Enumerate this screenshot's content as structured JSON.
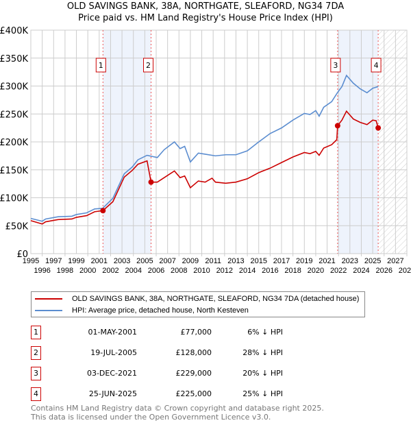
{
  "title_line1": "OLD SAVINGS BANK, 38A, NORTHGATE, SLEAFORD, NG34 7DA",
  "title_line2": "Price paid vs. HM Land Registry's House Price Index (HPI)",
  "chart_data": {
    "type": "line",
    "xlim": [
      1995,
      2028
    ],
    "ylim": [
      0,
      400000
    ],
    "yticks": [
      0,
      50000,
      100000,
      150000,
      200000,
      250000,
      300000,
      350000,
      400000
    ],
    "ytick_labels": [
      "£0",
      "£50K",
      "£100K",
      "£150K",
      "£200K",
      "£250K",
      "£300K",
      "£350K",
      "£400K"
    ],
    "xticks": [
      1995,
      1996,
      1997,
      1998,
      1999,
      2000,
      2001,
      2002,
      2003,
      2004,
      2005,
      2006,
      2007,
      2008,
      2009,
      2010,
      2011,
      2012,
      2013,
      2014,
      2015,
      2016,
      2017,
      2018,
      2019,
      2020,
      2021,
      2022,
      2023,
      2024,
      2025,
      2026,
      2027,
      2028
    ],
    "grid": true,
    "series": [
      {
        "name": "OLD SAVINGS BANK, 38A, NORTHGATE, SLEAFORD, NG34 7DA (detached house)",
        "color": "#cc0000",
        "x": [
          1995,
          1996,
          1996.3,
          1997.4,
          1998.6,
          1999,
          1999.9,
          2000.6,
          2001.33,
          2002.2,
          2003.2,
          2003.9,
          2004.4,
          2005.2,
          2005.55,
          2006.1,
          2006.7,
          2007.6,
          2008.1,
          2008.5,
          2009,
          2009.7,
          2010.3,
          2010.9,
          2011.2,
          2012.1,
          2013,
          2014,
          2015,
          2016,
          2017,
          2018,
          2019,
          2019.5,
          2020,
          2020.3,
          2020.7,
          2021.4,
          2021.85,
          2021.92,
          2022.3,
          2022.7,
          2023.3,
          2023.9,
          2024.5,
          2025,
          2025.3,
          2025.48
        ],
        "y": [
          59000,
          53000,
          57000,
          61000,
          62000,
          65000,
          68000,
          75000,
          77000,
          93000,
          137000,
          149000,
          160000,
          166000,
          128000,
          128000,
          136000,
          148000,
          136000,
          139000,
          118000,
          130000,
          128000,
          135000,
          128000,
          126000,
          128000,
          134000,
          145000,
          153000,
          163000,
          173000,
          181000,
          179000,
          183000,
          176000,
          189000,
          195000,
          204000,
          229000,
          239000,
          255000,
          241000,
          235000,
          231000,
          239000,
          238000,
          225000
        ]
      },
      {
        "name": "HPI: Average price, detached house, North Kesteven",
        "color": "#5b8dd0",
        "x": [
          1995,
          1996,
          1996.3,
          1997.4,
          1998.6,
          1999,
          1999.9,
          2000.6,
          2001.3,
          2002.2,
          2003.2,
          2003.9,
          2004.4,
          2005.2,
          2006.1,
          2006.7,
          2007.6,
          2008.1,
          2008.5,
          2009,
          2009.7,
          2010.3,
          2011.2,
          2012.1,
          2013,
          2014,
          2015,
          2016,
          2017,
          2018,
          2019,
          2019.5,
          2020,
          2020.3,
          2020.7,
          2021.4,
          2021.9,
          2022.3,
          2022.7,
          2023.3,
          2023.9,
          2024.5,
          2025,
          2025.48
        ],
        "y": [
          63000,
          58000,
          62000,
          66000,
          67000,
          70000,
          73000,
          80000,
          81000,
          99000,
          143000,
          155000,
          168000,
          176000,
          172000,
          186000,
          200000,
          188000,
          192000,
          164000,
          180000,
          178000,
          175000,
          177000,
          177000,
          184000,
          200000,
          215000,
          225000,
          239000,
          251000,
          249000,
          256000,
          246000,
          262000,
          272000,
          288000,
          299000,
          319000,
          305000,
          295000,
          288000,
          296000,
          299000
        ]
      }
    ],
    "sales": [
      {
        "label": "1",
        "x": 2001.33,
        "date": "01-MAY-2001",
        "price": 77000,
        "price_label": "£77,000",
        "hpi": "6% ↓ HPI"
      },
      {
        "label": "2",
        "x": 2005.55,
        "date": "19-JUL-2005",
        "price": 128000,
        "price_label": "£128,000",
        "hpi": "28% ↓ HPI"
      },
      {
        "label": "3",
        "x": 2021.92,
        "date": "03-DEC-2021",
        "price": 229000,
        "price_label": "£229,000",
        "hpi": "20% ↓ HPI"
      },
      {
        "label": "4",
        "x": 2025.48,
        "date": "25-JUN-2025",
        "price": 225000,
        "price_label": "£225,000",
        "hpi": "25% ↓ HPI"
      }
    ],
    "shaded_ranges": [
      [
        2001.33,
        2005.55
      ],
      [
        2021.92,
        2025.48
      ]
    ],
    "forecast_hatch_from": 2025.48
  },
  "footer_line1": "Contains HM Land Registry data © Crown copyright and database right 2025.",
  "footer_line2": "This data is licensed under the Open Government Licence v3.0."
}
